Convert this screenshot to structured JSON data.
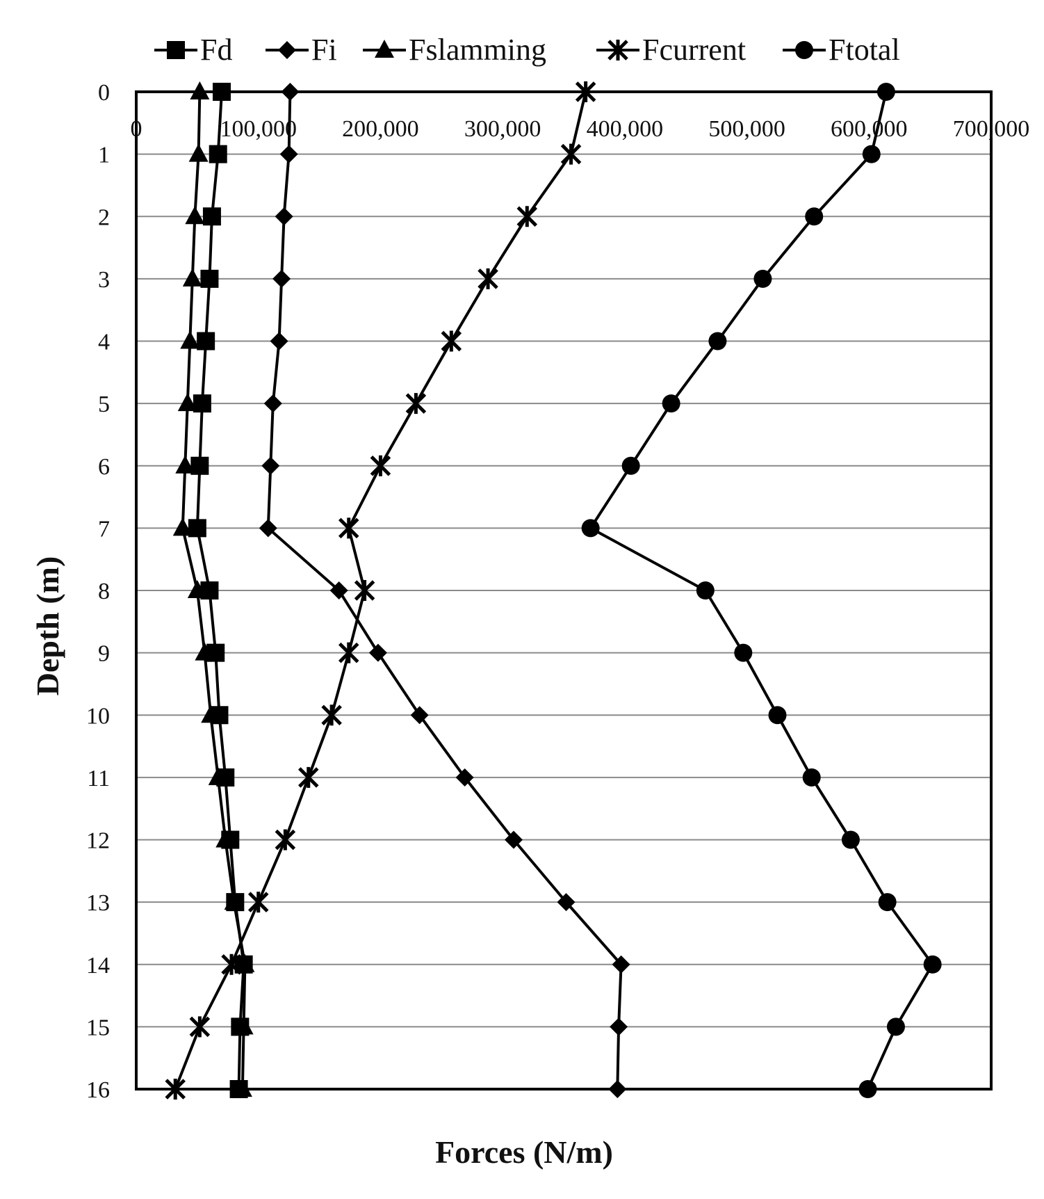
{
  "chart_data": {
    "type": "line",
    "title": "",
    "xlabel": "Forces (N/m)",
    "ylabel": "Depth (m)",
    "xlim": [
      0,
      700000
    ],
    "ylim": [
      0,
      16
    ],
    "y_inverted": true,
    "x_axis_position": "top",
    "x_ticks": [
      0,
      100000,
      200000,
      300000,
      400000,
      500000,
      600000,
      700000
    ],
    "x_tick_labels": [
      "0",
      "100,000",
      "200,000",
      "300,000",
      "400,000",
      "500,000",
      "600,000",
      "700,000"
    ],
    "y_ticks": [
      0,
      1,
      2,
      3,
      4,
      5,
      6,
      7,
      8,
      9,
      10,
      11,
      12,
      13,
      14,
      15,
      16
    ],
    "y_tick_labels": [
      "0",
      "1",
      "2",
      "3",
      "4",
      "5",
      "6",
      "7",
      "8",
      "9",
      "10",
      "11",
      "12",
      "13",
      "14",
      "15",
      "16"
    ],
    "grid": "horizontal",
    "legend_position": "top",
    "depth": [
      0,
      1,
      2,
      3,
      4,
      5,
      6,
      7,
      8,
      9,
      10,
      11,
      12,
      13,
      14,
      15,
      16
    ],
    "series": [
      {
        "name": "Fd",
        "marker": "square",
        "values": [
          70000,
          67000,
          62000,
          60000,
          57000,
          54000,
          52000,
          50000,
          60000,
          65000,
          68000,
          73000,
          77000,
          81000,
          88000,
          85000,
          84000
        ]
      },
      {
        "name": "Fi",
        "marker": "diamond",
        "values": [
          126000,
          125000,
          121000,
          119000,
          117000,
          112000,
          110000,
          108000,
          166000,
          198000,
          232000,
          269000,
          309000,
          352000,
          397000,
          395000,
          394000
        ]
      },
      {
        "name": "Fslamming",
        "marker": "triangle",
        "values": [
          52000,
          51000,
          48000,
          46000,
          44000,
          42000,
          40000,
          38000,
          50000,
          56000,
          61000,
          67000,
          73000,
          80000,
          89000,
          88000,
          87000
        ]
      },
      {
        "name": "Fcurrent",
        "marker": "star",
        "values": [
          368000,
          356000,
          320000,
          288000,
          258000,
          229000,
          200000,
          174000,
          187000,
          174000,
          160000,
          141000,
          122000,
          100000,
          78000,
          52000,
          32000
        ]
      },
      {
        "name": "Ftotal",
        "marker": "circle",
        "values": [
          614000,
          602000,
          555000,
          513000,
          476000,
          438000,
          405000,
          372000,
          466000,
          497000,
          525000,
          553000,
          585000,
          615000,
          652000,
          622000,
          599000
        ]
      }
    ]
  }
}
